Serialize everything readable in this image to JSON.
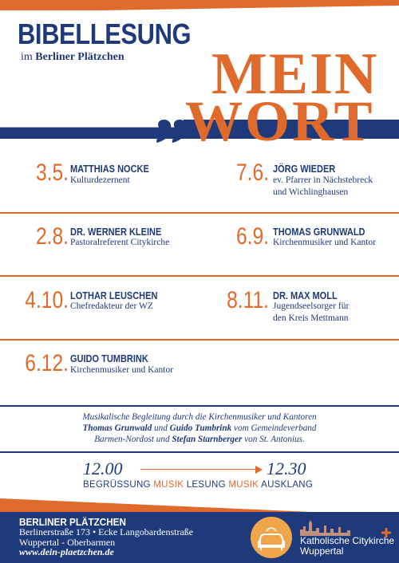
{
  "header": {
    "title": "BIBELLESUNG",
    "subtitle_prefix": "im",
    "subtitle_place": "Berliner Plätzchen",
    "headline_1": "MEIN",
    "headline_2": "WORT",
    "quote_glyph": "„"
  },
  "events": [
    {
      "date": "3.5.",
      "name": "MATTHIAS NOCKE",
      "desc": [
        "Kulturdezernent"
      ]
    },
    {
      "date": "7.6.",
      "name": "JÖRG WIEDER",
      "desc": [
        "ev. Pfarrer in Nächstebreck",
        "und Wichlinghausen"
      ]
    },
    {
      "date": "2.8.",
      "name": "DR. WERNER KLEINE",
      "desc": [
        "Pastoralreferent Citykirche"
      ]
    },
    {
      "date": "6.9.",
      "name": "THOMAS GRUNWALD",
      "desc": [
        "Kirchenmusiker und Kantor"
      ]
    },
    {
      "date": "4.10.",
      "name": "LOTHAR LEUSCHEN",
      "desc": [
        "Chefredakteur der WZ"
      ]
    },
    {
      "date": "8.11.",
      "name": "DR. MAX MOLL",
      "desc": [
        "Jugendseelsorger für",
        "den Kreis Mettmann"
      ]
    },
    {
      "date": "6.12.",
      "name": "GUIDO TUMBRINK",
      "desc": [
        "Kirchenmusiker und Kantor"
      ]
    }
  ],
  "music": {
    "line1": "Musikalische Begleitung durch die Kirchenmusiker und Kantoren",
    "name1": "Thomas Grunwald",
    "und": " und ",
    "name2": "Guido Tumbrink",
    "line2_suffix": " vom Gemeindeverband",
    "line3_prefix": "Barmen-Nordost und ",
    "name3": "Stefan Starnberger",
    "line3_suffix": " von St. Antonius."
  },
  "schedule": {
    "start": "12.00",
    "end": "12.30",
    "items": [
      "BEGRÜSSUNG",
      "MUSIK",
      "LESUNG",
      "MUSIK",
      "AUSKLANG"
    ]
  },
  "footer": {
    "name": "BERLINER PLÄTZCHEN",
    "address": "Berlinerstraße 173 • Ecke Langobardenstraße",
    "city": "Wuppertal - Oberbarmen",
    "website": "www.dein-plaetzchen.de",
    "brand_line1": "Katholische Citykirche",
    "brand_line2": "Wuppertal"
  },
  "colors": {
    "navy": "#1f3a7a",
    "orange": "#e06a2c",
    "logo": "#f0a64a"
  },
  "icons": [
    "sofa-icon",
    "city-skyline-icon",
    "cross-icon"
  ]
}
